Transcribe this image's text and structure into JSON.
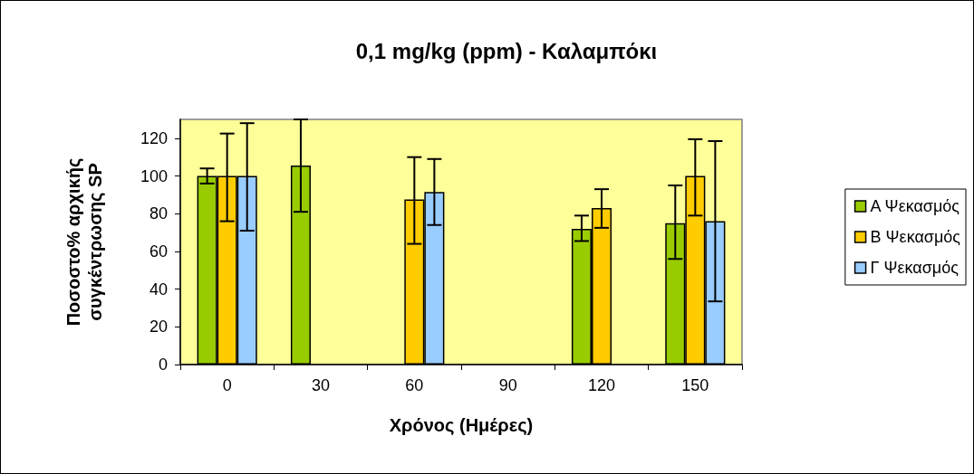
{
  "chart_data": {
    "type": "bar",
    "title": "0,1 mg/kg (ppm) - Καλαμπόκι",
    "xlabel": "Χρόνος (Ημέρες)",
    "ylabel": "Ποσοστο% αρχικής συγκέντρωσης SP",
    "categories": [
      "0",
      "30",
      "60",
      "90",
      "120",
      "150"
    ],
    "series": [
      {
        "name": "Α Ψεκασμός",
        "color": "#99cc00",
        "values": [
          100,
          105.5,
          null,
          null,
          72,
          75
        ],
        "errors": [
          [
            96,
            104
          ],
          [
            81,
            130
          ],
          null,
          null,
          [
            65.5,
            79
          ],
          [
            56,
            95
          ]
        ]
      },
      {
        "name": "Β Ψεκασμός",
        "color": "#ffcc00",
        "values": [
          100,
          null,
          87.5,
          null,
          83,
          100
        ],
        "errors": [
          [
            76,
            122.5
          ],
          null,
          [
            64,
            110
          ],
          null,
          [
            72.5,
            93
          ],
          [
            79,
            119.5
          ]
        ]
      },
      {
        "name": "Γ Ψεκασμός",
        "color": "#99ccff",
        "values": [
          100,
          null,
          91.5,
          null,
          null,
          76
        ],
        "errors": [
          [
            71,
            128
          ],
          null,
          [
            74,
            109
          ],
          null,
          null,
          [
            33.5,
            118.5
          ]
        ]
      }
    ],
    "ylim": [
      0,
      130
    ],
    "yticks": [
      0,
      20,
      40,
      60,
      80,
      100,
      120
    ],
    "grid": false,
    "legend": "right"
  }
}
